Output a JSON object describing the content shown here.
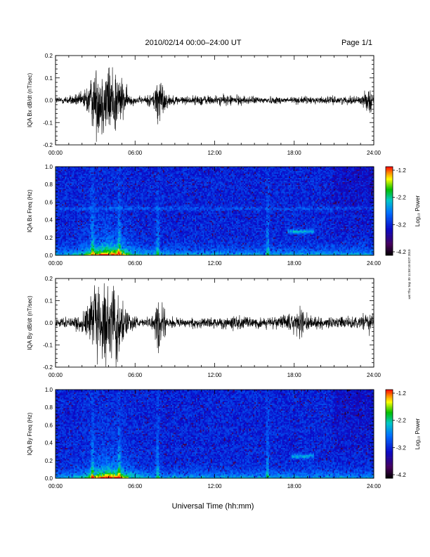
{
  "header": {
    "title": "2010/02/14  00:00–24:00 UT",
    "page": "Page 1/1"
  },
  "footer": {
    "xlabel": "Universal Time (hh:mm)",
    "stamp": "xwt Thu Sep 30 11:58:10 EDT 2010"
  },
  "colors": {
    "trace": "#000000",
    "colorbar": [
      "#ff0000",
      "#ff8000",
      "#ffff00",
      "#00c000",
      "#00c8c8",
      "#0078ff",
      "#0000c8",
      "#400060",
      "#000000"
    ]
  },
  "chart_data": [
    {
      "type": "line",
      "title": "",
      "ylabel": "IQA Bx dB/dt (nT/sec)",
      "xlabel": "",
      "xlim": [
        0,
        24
      ],
      "ylim": [
        -0.2,
        0.2
      ],
      "x_tick_labels": [
        "00:00",
        "06:00",
        "12:00",
        "18:00",
        "24:00"
      ],
      "y_tick_labels": [
        "0.2",
        "0.1",
        "0.0",
        "-0.1",
        "-0.2"
      ],
      "envelope": {
        "hours": [
          0,
          1,
          2,
          2.5,
          3,
          3.5,
          4,
          4.5,
          5,
          5.5,
          6,
          6.5,
          7,
          7.5,
          7.7,
          8,
          8.5,
          9,
          10,
          11,
          12,
          13,
          14,
          15,
          16,
          17,
          18,
          19,
          20,
          21,
          22,
          23,
          23.8,
          24
        ],
        "amplitude": [
          0.02,
          0.025,
          0.04,
          0.1,
          0.18,
          0.2,
          0.2,
          0.2,
          0.12,
          0.04,
          0.02,
          0.02,
          0.03,
          0.06,
          0.2,
          0.1,
          0.03,
          0.025,
          0.02,
          0.03,
          0.025,
          0.03,
          0.025,
          0.02,
          0.02,
          0.02,
          0.02,
          0.02,
          0.02,
          0.02,
          0.02,
          0.025,
          0.07,
          0.04
        ]
      }
    },
    {
      "type": "heatmap",
      "title": "",
      "ylabel": "IQA Bx Freq (Hz)",
      "xlabel": "",
      "xlim": [
        0,
        24
      ],
      "ylim": [
        0,
        1
      ],
      "x_tick_labels": [
        "00:00",
        "06:00",
        "12:00",
        "18:00",
        "24:00"
      ],
      "y_tick_labels": [
        "1.0",
        "0.8",
        "0.6",
        "0.4",
        "0.2",
        "0.0"
      ],
      "colorbar": {
        "label": "Log₁₀ Power",
        "range": [
          -4.2,
          -1.2
        ],
        "tick_labels": [
          "-1.2",
          "-2.2",
          "-3.2",
          "-4.2"
        ]
      },
      "features": {
        "burst_hour": 4.0,
        "spikes": [
          2.8,
          4.8,
          7.7,
          16.0
        ],
        "band_freq": 0.53,
        "pc1_hours": [
          17.5,
          19.5
        ],
        "pc1_freq": 0.27
      }
    },
    {
      "type": "line",
      "title": "",
      "ylabel": "IQA By dB/dt (nT/sec)",
      "xlabel": "",
      "xlim": [
        0,
        24
      ],
      "ylim": [
        -0.2,
        0.2
      ],
      "x_tick_labels": [
        "00:00",
        "06:00",
        "12:00",
        "18:00",
        "24:00"
      ],
      "y_tick_labels": [
        "0.2",
        "0.1",
        "0.0",
        "-0.1",
        "-0.2"
      ],
      "envelope": {
        "hours": [
          0,
          1,
          2,
          2.5,
          3,
          3.5,
          4,
          4.5,
          5,
          5.5,
          6,
          6.5,
          7,
          7.5,
          7.7,
          8,
          8.5,
          9,
          10,
          11,
          12,
          13,
          14,
          15,
          16,
          17,
          18,
          18.5,
          19,
          20,
          21,
          22,
          23,
          23.8,
          24
        ],
        "amplitude": [
          0.02,
          0.025,
          0.05,
          0.12,
          0.18,
          0.2,
          0.2,
          0.2,
          0.15,
          0.05,
          0.03,
          0.02,
          0.03,
          0.06,
          0.2,
          0.12,
          0.04,
          0.03,
          0.025,
          0.03,
          0.03,
          0.03,
          0.04,
          0.03,
          0.03,
          0.04,
          0.05,
          0.09,
          0.04,
          0.03,
          0.03,
          0.03,
          0.03,
          0.08,
          0.05
        ]
      }
    },
    {
      "type": "heatmap",
      "title": "",
      "ylabel": "IQA By Freq (Hz)",
      "xlabel": "Universal Time (hh:mm)",
      "xlim": [
        0,
        24
      ],
      "ylim": [
        0,
        1
      ],
      "x_tick_labels": [
        "00:00",
        "06:00",
        "12:00",
        "18:00",
        "24:00"
      ],
      "y_tick_labels": [
        "1.0",
        "0.8",
        "0.6",
        "0.4",
        "0.2",
        "0.0"
      ],
      "colorbar": {
        "label": "Log₁₀ Power",
        "range": [
          -4.2,
          -1.2
        ],
        "tick_labels": [
          "-1.2",
          "-2.2",
          "-3.2",
          "-4.2"
        ]
      },
      "features": {
        "burst_hour": 4.0,
        "spikes": [
          2.8,
          4.8,
          7.7,
          16.0
        ],
        "band_freq": 0,
        "pc1_hours": [
          17.8,
          19.5
        ],
        "pc1_freq": 0.25
      }
    }
  ]
}
